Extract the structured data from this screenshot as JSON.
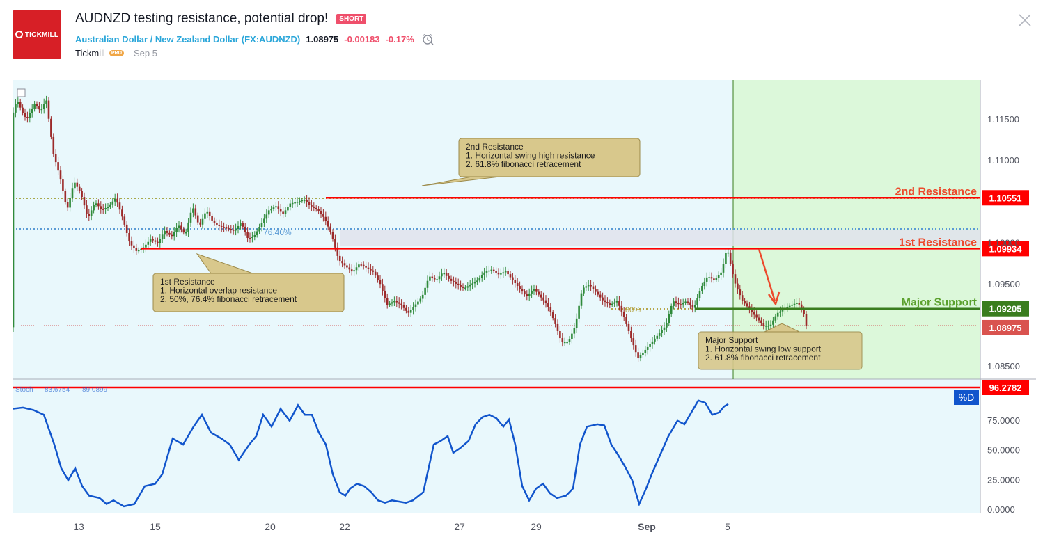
{
  "header": {
    "logo_text": "TICKMILL",
    "title": "AUDNZD testing resistance, potential drop!",
    "direction_badge": "SHORT",
    "symbol_name": "Australian Dollar / New Zealand Dollar",
    "symbol_code": "(FX:AUDNZD)",
    "price": "1.08975",
    "change": "-0.00183",
    "change_pct": "-0.17%",
    "author": "Tickmill",
    "author_badge": "PRO",
    "date": "Sep 5",
    "icons": {
      "alarm": "alarm-clock-icon",
      "close": "close-icon"
    }
  },
  "colors": {
    "resistance": "#ff0000",
    "support": "#3a7d1e",
    "label_red": "#ec4a2c",
    "label_green": "#5aa02c",
    "up_candle": "#2f8a3a",
    "down_candle": "#9c2a2a",
    "stoch": "#1155cc",
    "pane_bg": "#e9f8fc",
    "projection_bg": "#dcf8da"
  },
  "chart_data": {
    "type": "candlestick",
    "price_pane": {
      "y_ticks": [
        "1.11500",
        "1.11000",
        "1.10000",
        "1.09500",
        "1.08500"
      ],
      "ylim": [
        1.0835,
        1.1198
      ],
      "current_price": "1.08975",
      "levels": [
        {
          "name": "2nd Resistance",
          "value": "1.10551",
          "color": "red"
        },
        {
          "name": "1st Resistance",
          "value": "1.09934",
          "color": "red"
        },
        {
          "name": "Major Support",
          "value": "1.09205",
          "color": "green"
        }
      ],
      "fib_labels": [
        "76.40%",
        "80%"
      ],
      "annotations": [
        {
          "lines": [
            "2nd Resistance",
            "1. Horizontal swing high resistance",
            "2. 61.8% fibonacci retracement"
          ]
        },
        {
          "lines": [
            "1st Resistance",
            "1. Horizontal overlap resistance",
            "2. 50%, 76.4% fibonacci retracement"
          ]
        },
        {
          "lines": [
            "Major Support",
            "1. Horizontal swing low support",
            "2. 61.8% fibonacci retracement"
          ]
        }
      ],
      "price_path": [
        [
          0,
          1.115
        ],
        [
          8,
          1.1175
        ],
        [
          15,
          1.116
        ],
        [
          22,
          1.115
        ],
        [
          28,
          1.116
        ],
        [
          34,
          1.117
        ],
        [
          42,
          1.116
        ],
        [
          50,
          1.1175
        ],
        [
          60,
          1.111
        ],
        [
          70,
          1.108
        ],
        [
          80,
          1.104
        ],
        [
          90,
          1.1075
        ],
        [
          100,
          1.106
        ],
        [
          110,
          1.103
        ],
        [
          120,
          1.105
        ],
        [
          130,
          1.104
        ],
        [
          140,
          1.1045
        ],
        [
          150,
          1.1055
        ],
        [
          160,
          1.103
        ],
        [
          170,
          1.1
        ],
        [
          180,
          1.099
        ],
        [
          190,
          1.0995
        ],
        [
          200,
          1.1005
        ],
        [
          210,
          1.1
        ],
        [
          220,
          1.1015
        ],
        [
          230,
          1.1008
        ],
        [
          240,
          1.1022
        ],
        [
          250,
          1.101
        ],
        [
          260,
          1.1045
        ],
        [
          270,
          1.102
        ],
        [
          280,
          1.104
        ],
        [
          290,
          1.1025
        ],
        [
          300,
          1.102
        ],
        [
          310,
          1.1018
        ],
        [
          320,
          1.1015
        ],
        [
          330,
          1.1025
        ],
        [
          340,
          1.1005
        ],
        [
          350,
          1.101
        ],
        [
          360,
          1.1025
        ],
        [
          370,
          1.104
        ],
        [
          380,
          1.1045
        ],
        [
          390,
          1.1035
        ],
        [
          400,
          1.1048
        ],
        [
          410,
          1.105
        ],
        [
          420,
          1.1053
        ],
        [
          430,
          1.1045
        ],
        [
          440,
          1.104
        ],
        [
          450,
          1.103
        ],
        [
          460,
          1.101
        ],
        [
          470,
          1.098
        ],
        [
          480,
          1.0972
        ],
        [
          490,
          1.0965
        ],
        [
          500,
          1.0975
        ],
        [
          510,
          1.097
        ],
        [
          520,
          1.0965
        ],
        [
          530,
          1.095
        ],
        [
          540,
          1.0925
        ],
        [
          550,
          1.093
        ],
        [
          560,
          1.0925
        ],
        [
          570,
          1.0915
        ],
        [
          580,
          1.0925
        ],
        [
          590,
          1.0935
        ],
        [
          600,
          1.096
        ],
        [
          610,
          1.0955
        ],
        [
          620,
          1.0965
        ],
        [
          630,
          1.0955
        ],
        [
          640,
          1.095
        ],
        [
          650,
          1.0945
        ],
        [
          660,
          1.095
        ],
        [
          670,
          1.0955
        ],
        [
          680,
          1.0965
        ],
        [
          690,
          1.0968
        ],
        [
          700,
          1.0962
        ],
        [
          710,
          1.0966
        ],
        [
          720,
          1.0955
        ],
        [
          730,
          1.0945
        ],
        [
          740,
          1.0935
        ],
        [
          750,
          1.0945
        ],
        [
          760,
          1.0935
        ],
        [
          770,
          1.0925
        ],
        [
          780,
          1.0905
        ],
        [
          790,
          1.088
        ],
        [
          800,
          1.088
        ],
        [
          810,
          1.09
        ],
        [
          820,
          1.0945
        ],
        [
          830,
          1.095
        ],
        [
          840,
          1.094
        ],
        [
          850,
          1.093
        ],
        [
          860,
          1.0925
        ],
        [
          870,
          1.093
        ],
        [
          880,
          1.091
        ],
        [
          890,
          1.0885
        ],
        [
          900,
          1.086
        ],
        [
          910,
          1.087
        ],
        [
          920,
          1.088
        ],
        [
          930,
          1.089
        ],
        [
          940,
          1.09
        ],
        [
          950,
          1.093
        ],
        [
          960,
          1.0925
        ],
        [
          970,
          1.093
        ],
        [
          980,
          1.092
        ],
        [
          990,
          1.0945
        ],
        [
          1000,
          1.096
        ],
        [
          1010,
          1.0955
        ],
        [
          1020,
          1.0965
        ],
        [
          1028,
          1.0995
        ],
        [
          1034,
          1.097
        ],
        [
          1040,
          1.095
        ],
        [
          1050,
          1.093
        ],
        [
          1060,
          1.092
        ],
        [
          1070,
          1.091
        ],
        [
          1080,
          1.09
        ],
        [
          1090,
          1.09
        ],
        [
          1100,
          1.0915
        ],
        [
          1110,
          1.092
        ],
        [
          1120,
          1.0925
        ],
        [
          1130,
          1.0928
        ],
        [
          1138,
          1.0915
        ],
        [
          1142,
          1.0898
        ]
      ]
    },
    "x_ticks": [
      "13",
      "15",
      "20",
      "22",
      "27",
      "29",
      "Sep",
      "5"
    ],
    "stoch_pane": {
      "header": [
        "Stoch",
        "83.6754",
        "89.0899"
      ],
      "y_ticks": [
        "75.0000",
        "50.0000",
        "25.0000",
        "0.0000"
      ],
      "ylim": [
        0,
        100
      ],
      "level": "96.2782",
      "d_label": "%D",
      "values": [
        [
          0,
          85
        ],
        [
          15,
          86
        ],
        [
          30,
          84
        ],
        [
          45,
          80
        ],
        [
          60,
          55
        ],
        [
          70,
          35
        ],
        [
          80,
          25
        ],
        [
          90,
          35
        ],
        [
          100,
          20
        ],
        [
          110,
          12
        ],
        [
          125,
          10
        ],
        [
          135,
          5
        ],
        [
          145,
          8
        ],
        [
          160,
          3
        ],
        [
          175,
          5
        ],
        [
          190,
          20
        ],
        [
          205,
          22
        ],
        [
          215,
          30
        ],
        [
          230,
          60
        ],
        [
          245,
          55
        ],
        [
          260,
          70
        ],
        [
          272,
          80
        ],
        [
          285,
          65
        ],
        [
          300,
          60
        ],
        [
          312,
          55
        ],
        [
          325,
          42
        ],
        [
          340,
          55
        ],
        [
          350,
          62
        ],
        [
          360,
          80
        ],
        [
          372,
          70
        ],
        [
          385,
          85
        ],
        [
          398,
          75
        ],
        [
          410,
          88
        ],
        [
          420,
          80
        ],
        [
          430,
          80
        ],
        [
          440,
          65
        ],
        [
          450,
          55
        ],
        [
          460,
          30
        ],
        [
          470,
          15
        ],
        [
          478,
          12
        ],
        [
          485,
          18
        ],
        [
          495,
          22
        ],
        [
          505,
          20
        ],
        [
          515,
          15
        ],
        [
          525,
          8
        ],
        [
          535,
          6
        ],
        [
          545,
          8
        ],
        [
          555,
          7
        ],
        [
          565,
          6
        ],
        [
          575,
          8
        ],
        [
          590,
          15
        ],
        [
          605,
          55
        ],
        [
          615,
          58
        ],
        [
          625,
          62
        ],
        [
          633,
          48
        ],
        [
          643,
          52
        ],
        [
          655,
          58
        ],
        [
          665,
          72
        ],
        [
          675,
          78
        ],
        [
          685,
          80
        ],
        [
          695,
          77
        ],
        [
          705,
          70
        ],
        [
          713,
          76
        ],
        [
          722,
          55
        ],
        [
          732,
          20
        ],
        [
          742,
          8
        ],
        [
          752,
          18
        ],
        [
          762,
          22
        ],
        [
          772,
          14
        ],
        [
          782,
          10
        ],
        [
          795,
          12
        ],
        [
          805,
          18
        ],
        [
          815,
          55
        ],
        [
          825,
          70
        ],
        [
          840,
          72
        ],
        [
          850,
          71
        ],
        [
          860,
          55
        ],
        [
          870,
          46
        ],
        [
          880,
          36
        ],
        [
          890,
          25
        ],
        [
          900,
          5
        ],
        [
          910,
          18
        ],
        [
          918,
          30
        ],
        [
          930,
          46
        ],
        [
          942,
          62
        ],
        [
          955,
          75
        ],
        [
          965,
          72
        ],
        [
          975,
          82
        ],
        [
          985,
          92
        ],
        [
          995,
          90
        ],
        [
          1005,
          80
        ],
        [
          1015,
          82
        ],
        [
          1022,
          87
        ],
        [
          1028,
          89
        ]
      ]
    }
  }
}
